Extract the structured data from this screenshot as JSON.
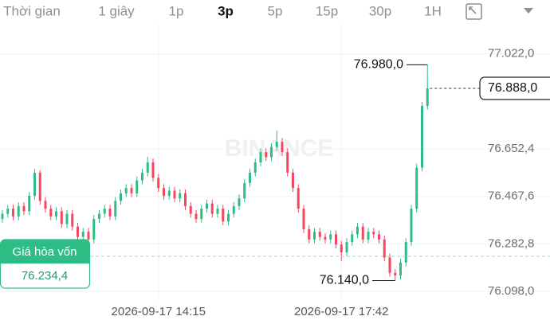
{
  "toolbar": [
    "Thời gian",
    "1 giây",
    "1p",
    "3p",
    "5p",
    "15p",
    "30p",
    "1H"
  ],
  "toolbar_selected": 3,
  "chart_data": {
    "type": "candlestick",
    "watermark": "BINANCE",
    "up_color": "#2ebd85",
    "down_color": "#f6465d",
    "grid": true,
    "ylim": [
      76061,
      77108
    ],
    "yticks": [
      {
        "value": 77022.0,
        "label": "77.022,0"
      },
      {
        "value": 76652.4,
        "label": "76.652,4"
      },
      {
        "value": 76467.6,
        "label": "76.467,6"
      },
      {
        "value": 76282.8,
        "label": "76.282,8"
      },
      {
        "value": 76098.0,
        "label": "76.098,0"
      }
    ],
    "categories": [
      null,
      null,
      null,
      null,
      null,
      null,
      null,
      null,
      null,
      null,
      null,
      null,
      null,
      null,
      null,
      null,
      null,
      null,
      null,
      null,
      null,
      null,
      null,
      null,
      null,
      null,
      null,
      null,
      null,
      "2026-09-17 14:15",
      null,
      null,
      null,
      null,
      null,
      null,
      null,
      null,
      null,
      null,
      null,
      null,
      null,
      null,
      null,
      null,
      null,
      null,
      null,
      null,
      null,
      null,
      null,
      null,
      null,
      null,
      null,
      null,
      null,
      null,
      null,
      null,
      null,
      "2026-09-17 17:42",
      null,
      null,
      null,
      null,
      null,
      null,
      null,
      null,
      null,
      null,
      null,
      null,
      null,
      null,
      null,
      null
    ],
    "open": [
      76380,
      76400,
      76420,
      76390,
      76430,
      76410,
      76470,
      76560,
      76450,
      76420,
      76390,
      76410,
      76360,
      76400,
      76350,
      76310,
      76330,
      76300,
      76380,
      76400,
      76420,
      76390,
      76450,
      76480,
      76500,
      76480,
      76530,
      76560,
      76600,
      76540,
      76500,
      76470,
      76490,
      76460,
      76480,
      76430,
      76400,
      76380,
      76420,
      76440,
      76400,
      76420,
      76370,
      76400,
      76430,
      76460,
      76520,
      76560,
      76600,
      76640,
      76620,
      76660,
      76680,
      76640,
      76560,
      76500,
      76420,
      76340,
      76300,
      76330,
      76310,
      76300,
      76320,
      76280,
      76250,
      76290,
      76320,
      76350,
      76300,
      76330,
      76320,
      76300,
      76230,
      76170,
      76160,
      76210,
      76290,
      76420,
      76580,
      76820
    ],
    "high": [
      76415,
      76435,
      76435,
      76445,
      76445,
      76485,
      76575,
      76570,
      76465,
      76435,
      76425,
      76425,
      76415,
      76415,
      76365,
      76345,
      76345,
      76395,
      76415,
      76435,
      76435,
      76465,
      76495,
      76515,
      76515,
      76545,
      76575,
      76622,
      76615,
      76555,
      76515,
      76505,
      76505,
      76495,
      76495,
      76445,
      76415,
      76435,
      76455,
      76455,
      76435,
      76435,
      76415,
      76445,
      76475,
      76535,
      76575,
      76615,
      76655,
      76655,
      76675,
      76723,
      76695,
      76655,
      76575,
      76515,
      76435,
      76355,
      76345,
      76345,
      76325,
      76335,
      76335,
      76295,
      76305,
      76335,
      76365,
      76365,
      76345,
      76345,
      76335,
      76315,
      76245,
      76185,
      76225,
      76305,
      76435,
      76595,
      76835,
      76980
    ],
    "low": [
      76365,
      76385,
      76375,
      76375,
      76395,
      76395,
      76455,
      76435,
      76405,
      76375,
      76375,
      76345,
      76345,
      76335,
      76295,
      76295,
      76285,
      76285,
      76365,
      76385,
      76375,
      76375,
      76435,
      76465,
      76465,
      76465,
      76515,
      76545,
      76525,
      76485,
      76455,
      76455,
      76445,
      76445,
      76415,
      76385,
      76365,
      76365,
      76405,
      76385,
      76385,
      76355,
      76355,
      76385,
      76415,
      76445,
      76505,
      76545,
      76585,
      76605,
      76605,
      76645,
      76625,
      76545,
      76485,
      76405,
      76325,
      76285,
      76285,
      76295,
      76285,
      76285,
      76265,
      76215,
      76235,
      76275,
      76305,
      76285,
      76285,
      76305,
      76285,
      76215,
      76155,
      76140,
      76145,
      76195,
      76275,
      76405,
      76565,
      76805
    ],
    "close": [
      76400,
      76420,
      76390,
      76430,
      76410,
      76470,
      76560,
      76450,
      76420,
      76390,
      76410,
      76360,
      76400,
      76350,
      76310,
      76330,
      76300,
      76380,
      76400,
      76420,
      76390,
      76450,
      76480,
      76500,
      76480,
      76530,
      76560,
      76600,
      76540,
      76500,
      76470,
      76490,
      76460,
      76480,
      76430,
      76400,
      76380,
      76420,
      76440,
      76400,
      76420,
      76370,
      76400,
      76430,
      76460,
      76520,
      76560,
      76600,
      76640,
      76620,
      76660,
      76680,
      76640,
      76560,
      76500,
      76420,
      76340,
      76300,
      76330,
      76310,
      76300,
      76320,
      76280,
      76250,
      76290,
      76320,
      76350,
      76300,
      76330,
      76320,
      76300,
      76230,
      76170,
      76160,
      76210,
      76290,
      76420,
      76580,
      76820,
      76888
    ],
    "high_marker": {
      "value": 76980.0,
      "label": "76.980,0"
    },
    "low_marker": {
      "value": 76140.0,
      "label": "76.140,0"
    },
    "current_price": {
      "value": 76888.0,
      "label": "76.888,0"
    },
    "break_even": {
      "title": "Giá hòa vốn",
      "value": 76234.4,
      "label": "76.234,4"
    }
  }
}
